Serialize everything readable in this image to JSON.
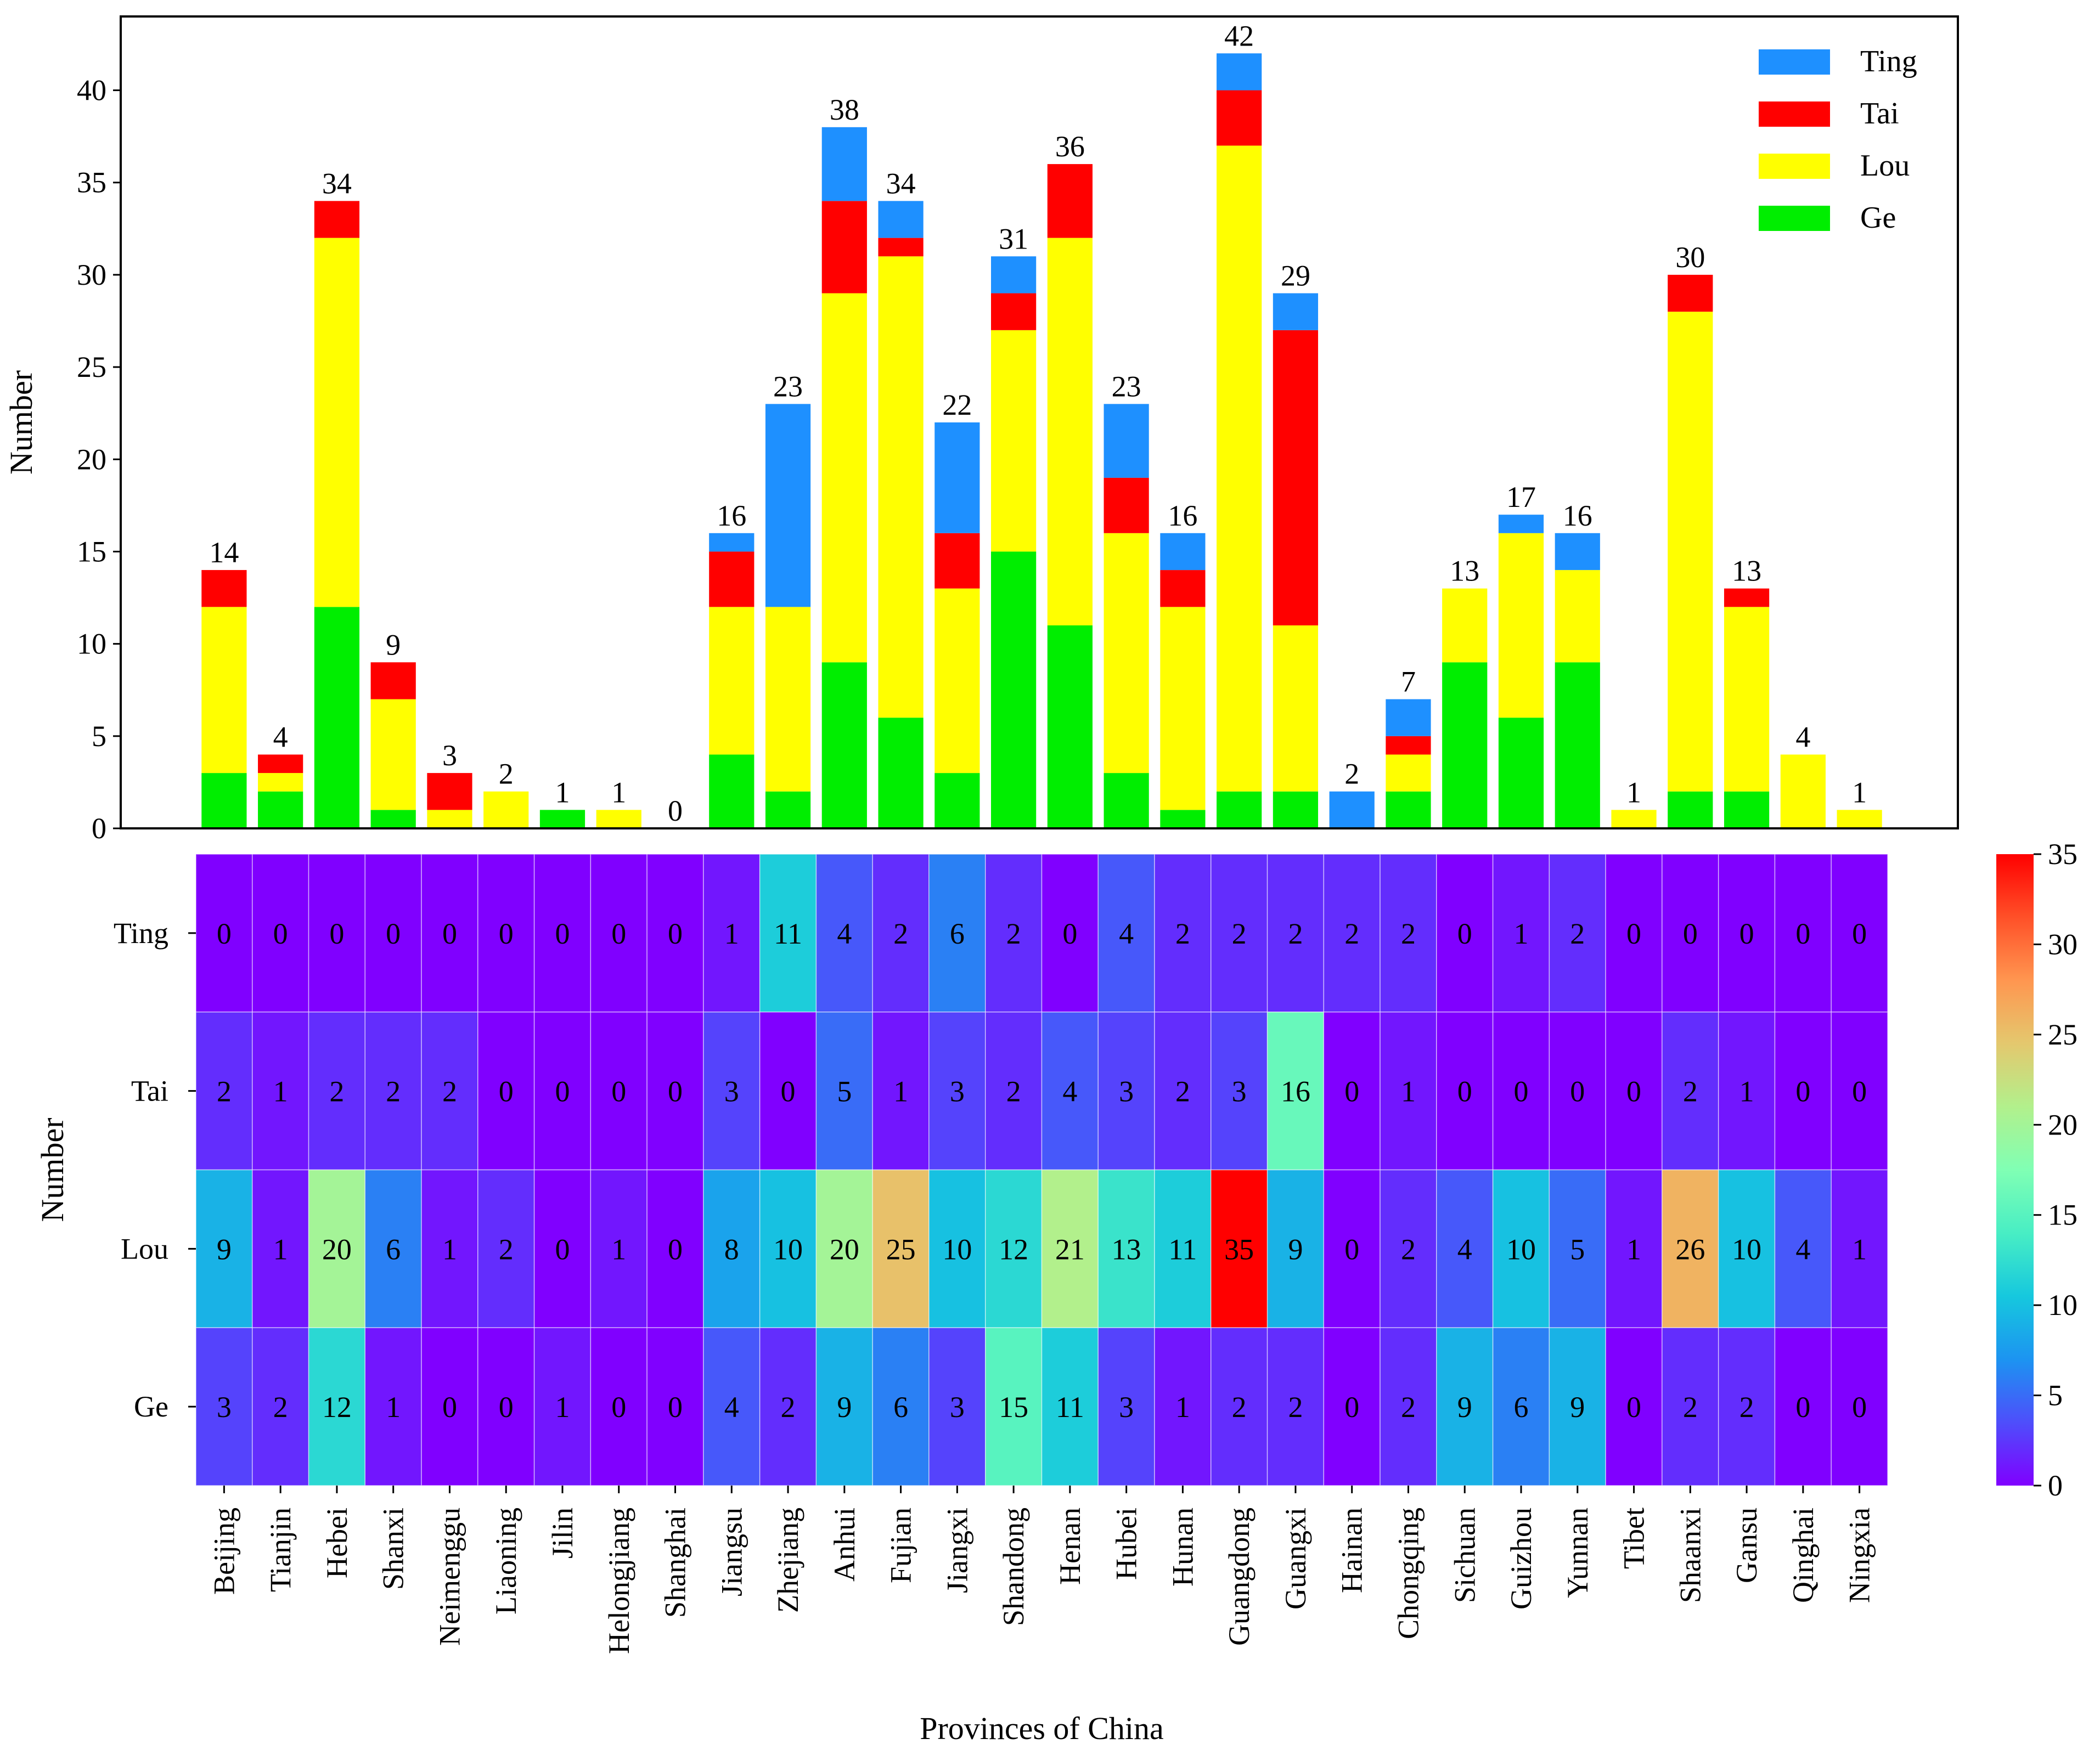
{
  "chart_data": [
    {
      "type": "bar",
      "stacked": true,
      "ylabel": "Number",
      "xlabel": "",
      "ylim": [
        0,
        44
      ],
      "yticks": [
        0,
        5,
        10,
        15,
        20,
        25,
        30,
        35,
        40
      ],
      "categories": [
        "Beijing",
        "Tianjin",
        "Hebei",
        "Shanxi",
        "Neimenggu",
        "Liaoning",
        "Jilin",
        "Helongjiang",
        "Shanghai",
        "Jiangsu",
        "Zhejiang",
        "Anhui",
        "Fujian",
        "Jiangxi",
        "Shandong",
        "Henan",
        "Hubei",
        "Hunan",
        "Guangdong",
        "Guangxi",
        "Hainan",
        "Chongqing",
        "Sichuan",
        "Guizhou",
        "Yunnan",
        "Tibet",
        "Shaanxi",
        "Gansu",
        "Qinghai",
        "Ningxia"
      ],
      "series": [
        {
          "name": "Ge",
          "color": "#00ee00",
          "values": [
            3,
            2,
            12,
            1,
            0,
            0,
            1,
            0,
            0,
            4,
            2,
            9,
            6,
            3,
            15,
            11,
            3,
            1,
            2,
            2,
            0,
            2,
            9,
            6,
            9,
            0,
            2,
            2,
            0,
            0
          ]
        },
        {
          "name": "Lou",
          "color": "#ffff00",
          "values": [
            9,
            1,
            20,
            6,
            1,
            2,
            0,
            1,
            0,
            8,
            10,
            20,
            25,
            10,
            12,
            21,
            13,
            11,
            35,
            9,
            0,
            2,
            4,
            10,
            5,
            1,
            26,
            10,
            4,
            1
          ]
        },
        {
          "name": "Tai",
          "color": "#ff0000",
          "values": [
            2,
            1,
            2,
            2,
            2,
            0,
            0,
            0,
            0,
            3,
            0,
            5,
            1,
            3,
            2,
            4,
            3,
            2,
            3,
            16,
            0,
            1,
            0,
            0,
            0,
            0,
            2,
            1,
            0,
            0
          ]
        },
        {
          "name": "Ting",
          "color": "#1e90ff",
          "values": [
            0,
            0,
            0,
            0,
            0,
            0,
            0,
            0,
            0,
            1,
            11,
            4,
            2,
            6,
            2,
            0,
            4,
            2,
            2,
            2,
            2,
            2,
            0,
            1,
            2,
            0,
            0,
            0,
            0,
            0
          ]
        }
      ],
      "totals": [
        14,
        4,
        34,
        9,
        3,
        2,
        1,
        1,
        0,
        16,
        23,
        38,
        34,
        22,
        31,
        36,
        23,
        16,
        42,
        29,
        2,
        7,
        13,
        17,
        16,
        1,
        30,
        13,
        4,
        1
      ],
      "legend": {
        "position": "top-right",
        "entries": [
          {
            "label": "Ting",
            "color": "#1e90ff"
          },
          {
            "label": "Tai",
            "color": "#ff0000"
          },
          {
            "label": "Lou",
            "color": "#ffff00"
          },
          {
            "label": "Ge",
            "color": "#00ee00"
          }
        ]
      }
    },
    {
      "type": "heatmap",
      "ylabel": "Number",
      "xlabel": "Provinces of China",
      "rows": [
        "Ting",
        "Tai",
        "Lou",
        "Ge"
      ],
      "columns": [
        "Beijing",
        "Tianjin",
        "Hebei",
        "Shanxi",
        "Neimenggu",
        "Liaoning",
        "Jilin",
        "Helongjiang",
        "Shanghai",
        "Jiangsu",
        "Zhejiang",
        "Anhui",
        "Fujian",
        "Jiangxi",
        "Shandong",
        "Henan",
        "Hubei",
        "Hunan",
        "Guangdong",
        "Guangxi",
        "Hainan",
        "Chongqing",
        "Sichuan",
        "Guizhou",
        "Yunnan",
        "Tibet",
        "Shaanxi",
        "Gansu",
        "Qinghai",
        "Ningxia"
      ],
      "values": [
        [
          0,
          0,
          0,
          0,
          0,
          0,
          0,
          0,
          0,
          1,
          11,
          4,
          2,
          6,
          2,
          0,
          4,
          2,
          2,
          2,
          2,
          2,
          0,
          1,
          2,
          0,
          0,
          0,
          0,
          0
        ],
        [
          2,
          1,
          2,
          2,
          2,
          0,
          0,
          0,
          0,
          3,
          0,
          5,
          1,
          3,
          2,
          4,
          3,
          2,
          3,
          16,
          0,
          1,
          0,
          0,
          0,
          0,
          2,
          1,
          0,
          0
        ],
        [
          9,
          1,
          20,
          6,
          1,
          2,
          0,
          1,
          0,
          8,
          10,
          20,
          25,
          10,
          12,
          21,
          13,
          11,
          35,
          9,
          0,
          2,
          4,
          10,
          5,
          1,
          26,
          10,
          4,
          1
        ],
        [
          3,
          2,
          12,
          1,
          0,
          0,
          1,
          0,
          0,
          4,
          2,
          9,
          6,
          3,
          15,
          11,
          3,
          1,
          2,
          2,
          0,
          2,
          9,
          6,
          9,
          0,
          2,
          2,
          0,
          0
        ]
      ],
      "colormap": "rainbow",
      "vmin": 0,
      "vmax": 35,
      "colorbar_ticks": [
        0,
        5,
        10,
        15,
        20,
        25,
        30,
        35
      ]
    }
  ]
}
